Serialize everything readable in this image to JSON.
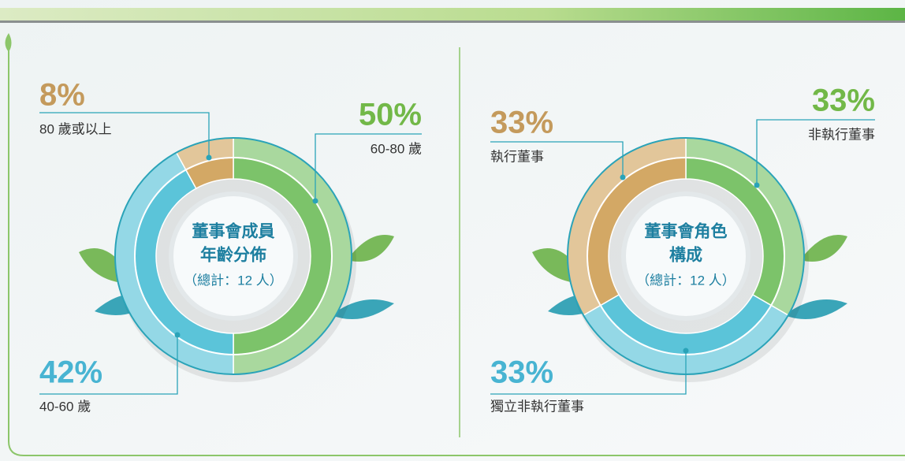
{
  "chart_data": [
    {
      "type": "pie",
      "title_lines": [
        "董事會成員",
        "年齡分佈"
      ],
      "subtitle": "（總計：12 人）",
      "categories": [
        "60-80 歲",
        "40-60 歲",
        "80 歲或以上"
      ],
      "values": [
        50,
        42,
        8
      ],
      "value_labels": [
        "50%",
        "42%",
        "8%"
      ],
      "colors": [
        "#7cc36a",
        "#5bc4d9",
        "#d3a865"
      ]
    },
    {
      "type": "pie",
      "title_lines": [
        "董事會角色",
        "構成"
      ],
      "subtitle": "（總計：12 人）",
      "categories": [
        "非執行董事",
        "獨立非執行董事",
        "執行董事"
      ],
      "values": [
        33,
        33,
        33
      ],
      "value_labels": [
        "33%",
        "33%",
        "33%"
      ],
      "colors": [
        "#7cc36a",
        "#5bc4d9",
        "#d3a865"
      ]
    }
  ]
}
